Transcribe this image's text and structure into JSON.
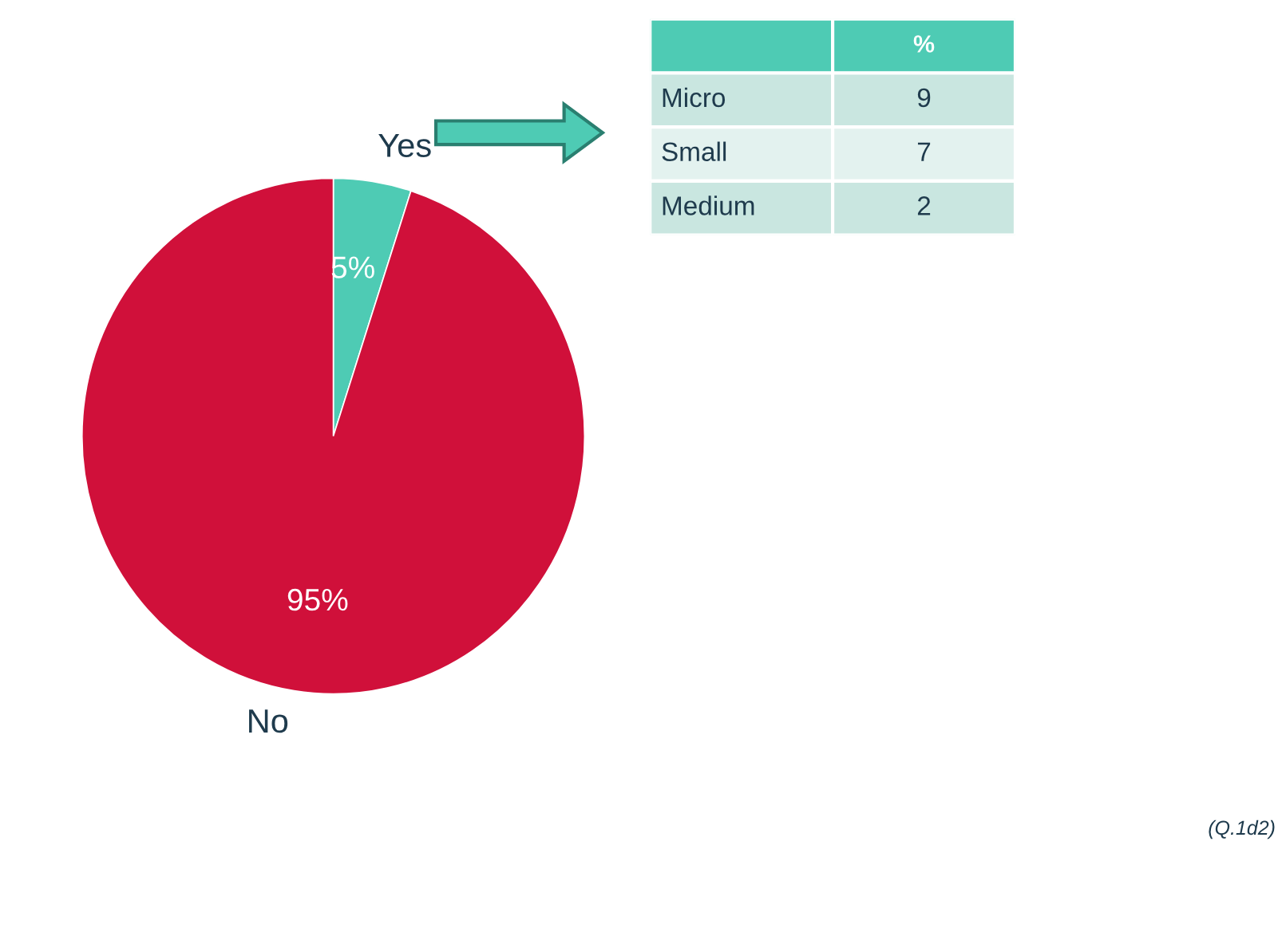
{
  "chart_data": [
    {
      "type": "pie",
      "categories": [
        "Yes",
        "No"
      ],
      "values": [
        5,
        95
      ],
      "colors": [
        "#4ecbb4",
        "#d0103a"
      ],
      "value_labels": [
        "5%",
        "95%"
      ],
      "legend": false,
      "annotations": [
        "(Q.1d2)"
      ]
    },
    {
      "type": "other",
      "title": "%",
      "categories": [
        "Micro",
        "Small",
        "Medium"
      ],
      "values": [
        9,
        7,
        2
      ],
      "data_labels": true
    }
  ]
}
